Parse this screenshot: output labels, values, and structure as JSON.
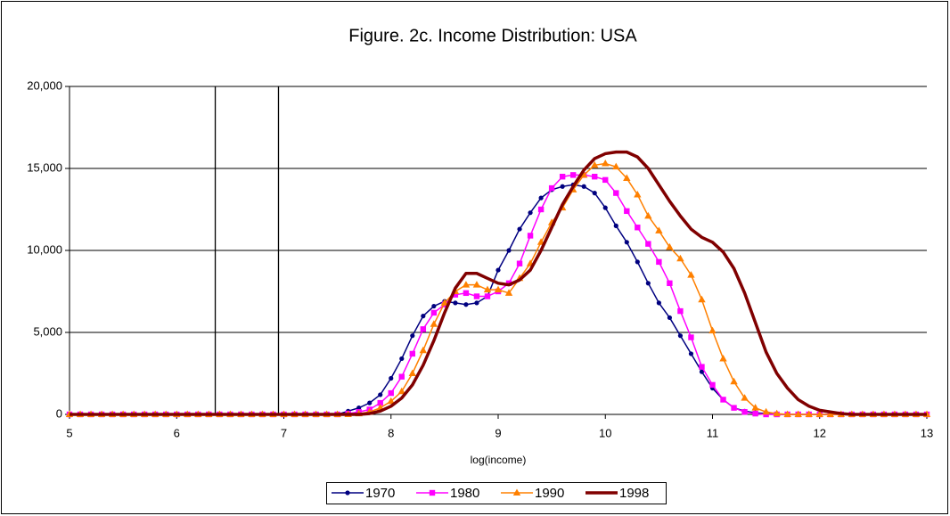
{
  "chart_data": {
    "type": "line",
    "title": "Figure. 2c. Income Distribution: USA",
    "x_label": "log(income)",
    "x": [
      5,
      5.1,
      5.2,
      5.3,
      5.4,
      5.5,
      5.6,
      5.7,
      5.8,
      5.9,
      6,
      6.1,
      6.2,
      6.3,
      6.4,
      6.5,
      6.6,
      6.7,
      6.8,
      6.9,
      7,
      7.1,
      7.2,
      7.3,
      7.4,
      7.5,
      7.6,
      7.7,
      7.8,
      7.9,
      8,
      8.1,
      8.2,
      8.3,
      8.4,
      8.5,
      8.6,
      8.7,
      8.8,
      8.9,
      9,
      9.1,
      9.2,
      9.3,
      9.4,
      9.5,
      9.6,
      9.7,
      9.8,
      9.9,
      10,
      10.1,
      10.2,
      10.3,
      10.4,
      10.5,
      10.6,
      10.7,
      10.8,
      10.9,
      11,
      11.1,
      11.2,
      11.3,
      11.4,
      11.5,
      11.6,
      11.7,
      11.8,
      11.9,
      12,
      12.1,
      12.2,
      12.3,
      12.4,
      12.5,
      12.6,
      12.7,
      12.8,
      12.9,
      13
    ],
    "series": [
      {
        "name": "1970",
        "color": "#000080",
        "marker": "circle",
        "values": [
          0,
          0,
          0,
          0,
          0,
          0,
          0,
          0,
          0,
          0,
          0,
          0,
          0,
          0,
          0,
          0,
          0,
          0,
          0,
          0,
          0,
          0,
          0,
          0,
          0,
          0,
          200,
          400,
          700,
          1200,
          2200,
          3400,
          4800,
          6000,
          6600,
          6900,
          6800,
          6700,
          6800,
          7200,
          8800,
          10000,
          11300,
          12300,
          13200,
          13700,
          13900,
          14000,
          13900,
          13500,
          12600,
          11500,
          10500,
          9300,
          8000,
          6800,
          5900,
          4800,
          3700,
          2600,
          1600,
          900,
          400,
          200,
          100,
          50,
          0,
          0,
          0,
          0,
          0,
          0,
          0,
          0,
          0,
          0,
          0,
          0,
          0,
          0,
          0
        ]
      },
      {
        "name": "1980",
        "color": "#ff00ff",
        "marker": "square",
        "values": [
          0,
          0,
          0,
          0,
          0,
          0,
          0,
          0,
          0,
          0,
          0,
          0,
          0,
          0,
          0,
          0,
          0,
          0,
          0,
          0,
          0,
          0,
          0,
          0,
          0,
          0,
          50,
          150,
          300,
          700,
          1300,
          2300,
          3700,
          5200,
          6200,
          6700,
          7300,
          7400,
          7200,
          7200,
          7500,
          8000,
          9200,
          10900,
          12500,
          13800,
          14500,
          14600,
          14600,
          14500,
          14300,
          13500,
          12400,
          11400,
          10400,
          9300,
          8000,
          6300,
          4700,
          2900,
          1800,
          900,
          400,
          150,
          50,
          0,
          0,
          0,
          0,
          0,
          0,
          0,
          0,
          0,
          0,
          0,
          0,
          0,
          0,
          0,
          0
        ]
      },
      {
        "name": "1990",
        "color": "#ff8000",
        "marker": "triangle",
        "values": [
          0,
          0,
          0,
          0,
          0,
          0,
          0,
          0,
          0,
          0,
          0,
          0,
          0,
          0,
          0,
          0,
          0,
          0,
          0,
          0,
          0,
          0,
          0,
          0,
          0,
          0,
          0,
          50,
          150,
          400,
          800,
          1400,
          2500,
          3900,
          5500,
          6800,
          7500,
          7900,
          7900,
          7600,
          7600,
          7400,
          8300,
          9200,
          10500,
          11700,
          12600,
          13700,
          14600,
          15200,
          15300,
          15100,
          14400,
          13400,
          12100,
          11200,
          10200,
          9500,
          8500,
          7000,
          5100,
          3400,
          2000,
          1000,
          400,
          150,
          50,
          0,
          0,
          0,
          0,
          0,
          0,
          0,
          0,
          0,
          0,
          0,
          0,
          0,
          0
        ]
      },
      {
        "name": "1998",
        "color": "#800000",
        "marker": "none",
        "values": [
          0,
          0,
          0,
          0,
          0,
          0,
          0,
          0,
          0,
          0,
          0,
          0,
          0,
          0,
          0,
          0,
          0,
          0,
          0,
          0,
          0,
          0,
          0,
          0,
          0,
          0,
          0,
          0,
          50,
          200,
          500,
          1000,
          1800,
          3000,
          4500,
          6200,
          7700,
          8600,
          8600,
          8300,
          8000,
          7900,
          8200,
          8800,
          10000,
          11400,
          12800,
          13900,
          14900,
          15600,
          15900,
          16000,
          16000,
          15700,
          15000,
          14000,
          13000,
          12100,
          11300,
          10800,
          10500,
          9900,
          8900,
          7400,
          5600,
          3800,
          2500,
          1600,
          900,
          500,
          250,
          150,
          50,
          0,
          0,
          0,
          0,
          0,
          0,
          0,
          0
        ]
      }
    ],
    "xlim": [
      5,
      13
    ],
    "xticks": [
      5,
      6,
      7,
      8,
      9,
      10,
      11,
      12,
      13
    ],
    "ylim": [
      0,
      20000
    ],
    "yticks": [
      0,
      {
        "value": 5000,
        "label": "5,000"
      },
      {
        "value": 10000,
        "label": "10,000"
      },
      {
        "value": 15000,
        "label": "15,000"
      },
      {
        "value": 20000,
        "label": "20,000"
      }
    ],
    "grid": true,
    "legend": "bottom",
    "vlines": [
      6.36,
      6.95
    ]
  }
}
